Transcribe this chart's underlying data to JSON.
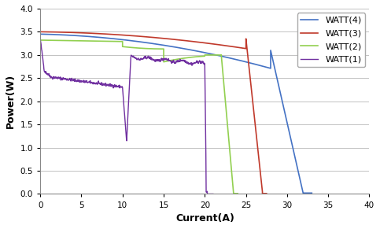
{
  "title": "",
  "xlabel": "Current(A)",
  "ylabel": "Power(W)",
  "xlim": [
    0,
    40
  ],
  "ylim": [
    0,
    4
  ],
  "yticks": [
    0,
    0.5,
    1.0,
    1.5,
    2.0,
    2.5,
    3.0,
    3.5,
    4.0
  ],
  "xticks": [
    0,
    5,
    10,
    15,
    20,
    25,
    30,
    35,
    40
  ],
  "legend_labels": [
    "WATT(4)",
    "WATT(3)",
    "WATT(2)",
    "WATT(1)"
  ],
  "colors": {
    "WATT4": "#4472C4",
    "WATT3": "#C0392B",
    "WATT2": "#92D050",
    "WATT1": "#7030A0"
  },
  "background": "#FFFFFF"
}
